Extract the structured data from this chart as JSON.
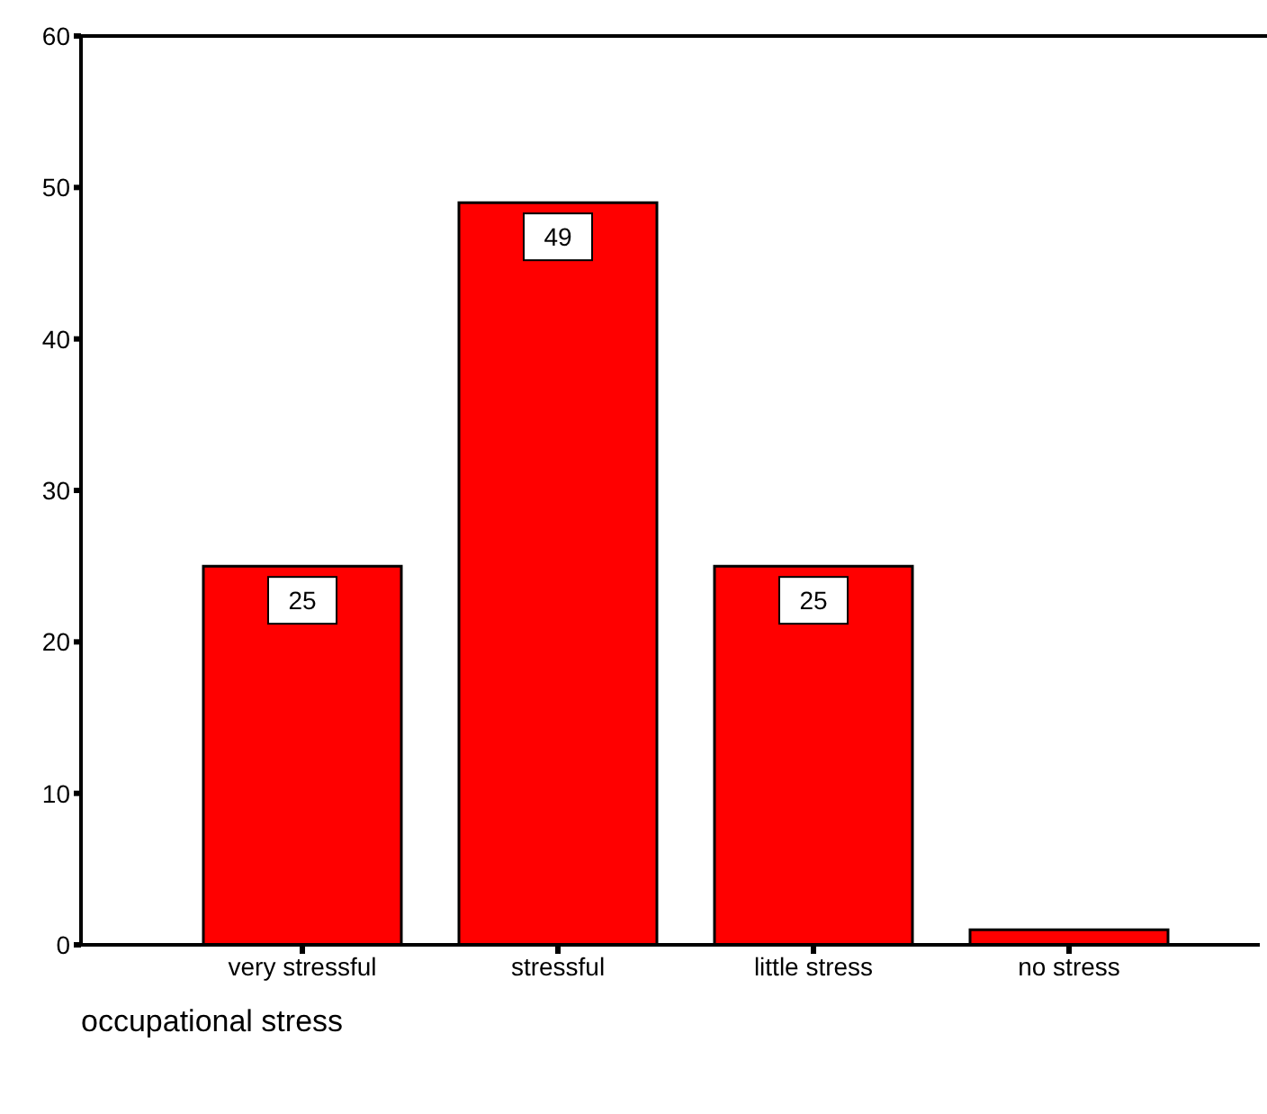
{
  "chart_data": {
    "type": "bar",
    "xlabel": "occupational stress",
    "categories": [
      "very stressful",
      "stressful",
      "little stress",
      "no stress"
    ],
    "values": [
      25,
      49,
      25,
      1
    ],
    "color": "#ff0000",
    "value_labels": [
      "25",
      "49",
      "25",
      null
    ],
    "ylim": [
      0,
      60
    ],
    "yticks": [
      0,
      10,
      20,
      30,
      40,
      50,
      60
    ],
    "grid": false
  }
}
